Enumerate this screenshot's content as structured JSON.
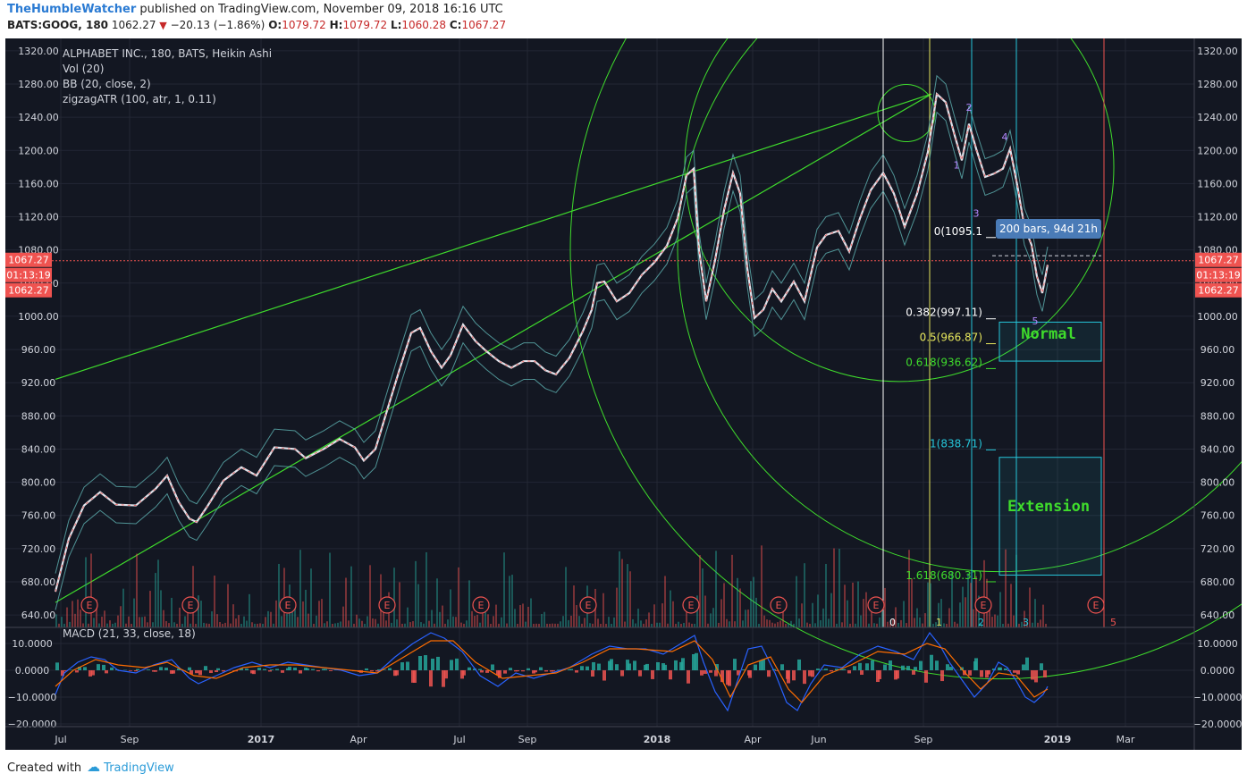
{
  "header": {
    "author": "TheHumbleWatcher",
    "published": "published on TradingView.com, November 09, 2018 16:16 UTC",
    "symbol": "BATS:GOOG, 180",
    "last": "1062.27",
    "change": "−20.13 (−1.86%)",
    "o_label": "O:",
    "o": "1079.72",
    "h_label": "H:",
    "h": "1079.72",
    "l_label": "L:",
    "l": "1060.28",
    "c_label": "C:",
    "c": "1067.27"
  },
  "footer": {
    "created_with": "Created with",
    "brand": "TradingView"
  },
  "legend": [
    "ALPHABET INC., 180, BATS, Heikin Ashi",
    "Vol (20)",
    "BB (20, close, 2)",
    "zigzagATR (100, atr, 1, 0.11)"
  ],
  "macd_label": "MACD (21, 33, close, 18)",
  "colors": {
    "bg": "#131722",
    "grid": "#232734",
    "axis_text": "#d1d4dc",
    "green_line": "#3fdc2c",
    "price_tag": "#ef5350",
    "bb": "#5fb3b3",
    "macd": "#2962ff",
    "signal": "#ff6d00",
    "hist_up": "#26a69a",
    "hist_down": "#ef5350"
  },
  "chart_data": {
    "type": "line",
    "price_axis": {
      "ticks": [
        "1320.00",
        "1280.00",
        "1240.00",
        "1200.00",
        "1160.00",
        "1120.00",
        "1080.00",
        "1040.00",
        "1000.00",
        "960.00",
        "920.00",
        "880.00",
        "840.00",
        "800.00",
        "760.00",
        "720.00",
        "680.00",
        "640.00"
      ],
      "ylim": [
        625,
        1335
      ]
    },
    "macd_axis": {
      "ticks": [
        "10.0000",
        "0.0000",
        "−10.0000",
        "−20.0000"
      ],
      "ylim": [
        -21,
        16
      ]
    },
    "time_axis": [
      "Jul",
      "Sep",
      "2017",
      "Apr",
      "Jul",
      "Sep",
      "2018",
      "Apr",
      "Jun",
      "Sep",
      "2019",
      "Mar"
    ],
    "price_series": [
      [
        0,
        668
      ],
      [
        15,
        732
      ],
      [
        32,
        772
      ],
      [
        50,
        788
      ],
      [
        68,
        773
      ],
      [
        90,
        772
      ],
      [
        112,
        792
      ],
      [
        125,
        808
      ],
      [
        138,
        776
      ],
      [
        150,
        756
      ],
      [
        158,
        752
      ],
      [
        170,
        771
      ],
      [
        188,
        802
      ],
      [
        208,
        818
      ],
      [
        225,
        808
      ],
      [
        245,
        842
      ],
      [
        268,
        840
      ],
      [
        280,
        829
      ],
      [
        300,
        840
      ],
      [
        318,
        852
      ],
      [
        335,
        842
      ],
      [
        345,
        826
      ],
      [
        358,
        840
      ],
      [
        372,
        890
      ],
      [
        385,
        936
      ],
      [
        398,
        980
      ],
      [
        408,
        986
      ],
      [
        420,
        958
      ],
      [
        432,
        938
      ],
      [
        442,
        953
      ],
      [
        456,
        990
      ],
      [
        470,
        970
      ],
      [
        482,
        958
      ],
      [
        496,
        946
      ],
      [
        510,
        938
      ],
      [
        524,
        946
      ],
      [
        536,
        946
      ],
      [
        548,
        935
      ],
      [
        560,
        930
      ],
      [
        575,
        950
      ],
      [
        590,
        982
      ],
      [
        600,
        1008
      ],
      [
        606,
        1040
      ],
      [
        614,
        1042
      ],
      [
        628,
        1018
      ],
      [
        642,
        1028
      ],
      [
        656,
        1050
      ],
      [
        670,
        1065
      ],
      [
        684,
        1085
      ],
      [
        696,
        1118
      ],
      [
        706,
        1170
      ],
      [
        714,
        1178
      ],
      [
        720,
        1080
      ],
      [
        728,
        1018
      ],
      [
        738,
        1068
      ],
      [
        748,
        1128
      ],
      [
        758,
        1173
      ],
      [
        766,
        1148
      ],
      [
        774,
        1058
      ],
      [
        782,
        998
      ],
      [
        792,
        1008
      ],
      [
        802,
        1033
      ],
      [
        812,
        1018
      ],
      [
        826,
        1042
      ],
      [
        838,
        1018
      ],
      [
        852,
        1083
      ],
      [
        862,
        1098
      ],
      [
        876,
        1103
      ],
      [
        888,
        1078
      ],
      [
        900,
        1118
      ],
      [
        912,
        1152
      ],
      [
        926,
        1173
      ],
      [
        938,
        1148
      ],
      [
        950,
        1108
      ],
      [
        964,
        1148
      ],
      [
        976,
        1198
      ],
      [
        986,
        1268
      ],
      [
        996,
        1258
      ],
      [
        1006,
        1218
      ],
      [
        1014,
        1188
      ],
      [
        1022,
        1232
      ],
      [
        1030,
        1202
      ],
      [
        1040,
        1168
      ],
      [
        1050,
        1172
      ],
      [
        1060,
        1178
      ],
      [
        1068,
        1202
      ],
      [
        1076,
        1158
      ],
      [
        1084,
        1108
      ],
      [
        1092,
        1086
      ],
      [
        1098,
        1048
      ],
      [
        1104,
        1028
      ],
      [
        1110,
        1062
      ]
    ],
    "macd_series": [
      [
        0,
        -9
      ],
      [
        10,
        -1
      ],
      [
        25,
        3
      ],
      [
        40,
        5
      ],
      [
        55,
        4
      ],
      [
        70,
        0
      ],
      [
        90,
        -1
      ],
      [
        110,
        2
      ],
      [
        130,
        4
      ],
      [
        150,
        -3
      ],
      [
        160,
        -5
      ],
      [
        180,
        -2
      ],
      [
        200,
        1
      ],
      [
        220,
        3
      ],
      [
        240,
        1
      ],
      [
        260,
        3
      ],
      [
        280,
        2
      ],
      [
        300,
        1
      ],
      [
        320,
        0
      ],
      [
        340,
        -2
      ],
      [
        360,
        -1
      ],
      [
        380,
        5
      ],
      [
        400,
        10
      ],
      [
        420,
        14
      ],
      [
        435,
        12
      ],
      [
        455,
        7
      ],
      [
        475,
        -2
      ],
      [
        495,
        -6
      ],
      [
        515,
        -1
      ],
      [
        535,
        -3
      ],
      [
        555,
        -1
      ],
      [
        575,
        1
      ],
      [
        600,
        6
      ],
      [
        620,
        9
      ],
      [
        640,
        8
      ],
      [
        660,
        8
      ],
      [
        680,
        6
      ],
      [
        700,
        10
      ],
      [
        715,
        13
      ],
      [
        725,
        3
      ],
      [
        738,
        -8
      ],
      [
        752,
        -15
      ],
      [
        762,
        -5
      ],
      [
        775,
        8
      ],
      [
        790,
        9
      ],
      [
        805,
        -1
      ],
      [
        818,
        -12
      ],
      [
        830,
        -15
      ],
      [
        845,
        -5
      ],
      [
        860,
        2
      ],
      [
        880,
        1
      ],
      [
        900,
        6
      ],
      [
        920,
        9
      ],
      [
        940,
        7
      ],
      [
        960,
        4
      ],
      [
        978,
        14
      ],
      [
        990,
        9
      ],
      [
        1000,
        3
      ],
      [
        1015,
        -4
      ],
      [
        1028,
        -10
      ],
      [
        1042,
        -5
      ],
      [
        1055,
        3
      ],
      [
        1065,
        1
      ],
      [
        1075,
        -4
      ],
      [
        1085,
        -10
      ],
      [
        1095,
        -12
      ],
      [
        1105,
        -9
      ],
      [
        1110,
        -6
      ]
    ],
    "signal_series": [
      [
        0,
        -6
      ],
      [
        20,
        0
      ],
      [
        45,
        4
      ],
      [
        70,
        2
      ],
      [
        100,
        1
      ],
      [
        125,
        3
      ],
      [
        155,
        -2
      ],
      [
        180,
        -3
      ],
      [
        210,
        1
      ],
      [
        240,
        2
      ],
      [
        270,
        2
      ],
      [
        300,
        1
      ],
      [
        330,
        0
      ],
      [
        360,
        -1
      ],
      [
        390,
        5
      ],
      [
        420,
        11
      ],
      [
        445,
        11
      ],
      [
        470,
        3
      ],
      [
        500,
        -3
      ],
      [
        530,
        -2
      ],
      [
        560,
        -1
      ],
      [
        590,
        3
      ],
      [
        620,
        8
      ],
      [
        650,
        8
      ],
      [
        690,
        7
      ],
      [
        715,
        11
      ],
      [
        735,
        4
      ],
      [
        755,
        -10
      ],
      [
        775,
        2
      ],
      [
        800,
        5
      ],
      [
        820,
        -7
      ],
      [
        835,
        -12
      ],
      [
        860,
        -2
      ],
      [
        890,
        2
      ],
      [
        920,
        7
      ],
      [
        950,
        6
      ],
      [
        975,
        10
      ],
      [
        995,
        8
      ],
      [
        1015,
        0
      ],
      [
        1035,
        -7
      ],
      [
        1055,
        -1
      ],
      [
        1075,
        -2
      ],
      [
        1095,
        -10
      ],
      [
        1110,
        -7
      ]
    ],
    "annotations": {
      "trend_lines": [
        [
          [
            0,
            924
          ],
          [
            980,
            1268
          ]
        ],
        [
          [
            0,
            655
          ],
          [
            980,
            1268
          ]
        ]
      ],
      "vertical_lines": [
        {
          "x": 982,
          "color": "#ffffff",
          "label": "0"
        },
        {
          "x": 1034,
          "color": "#e6e65c",
          "label": "1"
        },
        {
          "x": 1081,
          "color": "#26c6da",
          "label": "2"
        },
        {
          "x": 1131,
          "color": "#26c6da",
          "label": "3"
        },
        {
          "x": 1229,
          "color": "#ef5350",
          "label": "5"
        }
      ],
      "fib_levels": [
        {
          "label": "0(1095.1",
          "price": 1095,
          "color": "#ffffff"
        },
        {
          "label": "0.382(997.11)",
          "price": 997,
          "color": "#ffffff"
        },
        {
          "label": "0.5(966.87)",
          "price": 967,
          "color": "#e6e65c"
        },
        {
          "label": "0.618(936.62)",
          "price": 937,
          "color": "#3fdc2c"
        },
        {
          "label": "1(838.71)",
          "price": 839,
          "color": "#26c6da"
        },
        {
          "label": "1.618(680.31)",
          "price": 680,
          "color": "#3fdc2c"
        }
      ],
      "boxes": [
        {
          "label": "Normal",
          "top": 993,
          "bottom": 946
        },
        {
          "label": "Extension",
          "top": 830,
          "bottom": 688
        }
      ],
      "range_label": "200 bars, 94d 21h",
      "wave_labels": [
        {
          "text": "1",
          "x": 1008,
          "price": 1178,
          "color": "#b388ff"
        },
        {
          "text": "2",
          "x": 1022,
          "price": 1248,
          "color": "#b388ff"
        },
        {
          "text": "3",
          "x": 1030,
          "price": 1120,
          "color": "#b388ff"
        },
        {
          "text": "4",
          "x": 1062,
          "price": 1212,
          "color": "#b388ff"
        },
        {
          "text": "5",
          "x": 1096,
          "price": 990,
          "color": "#b388ff"
        }
      ],
      "earnings_x": [
        94,
        207,
        316,
        427,
        532,
        652,
        767,
        865,
        974,
        1094,
        1220
      ],
      "price_tags": [
        "1067.27",
        "01:13:19",
        "1062.27"
      ]
    }
  }
}
